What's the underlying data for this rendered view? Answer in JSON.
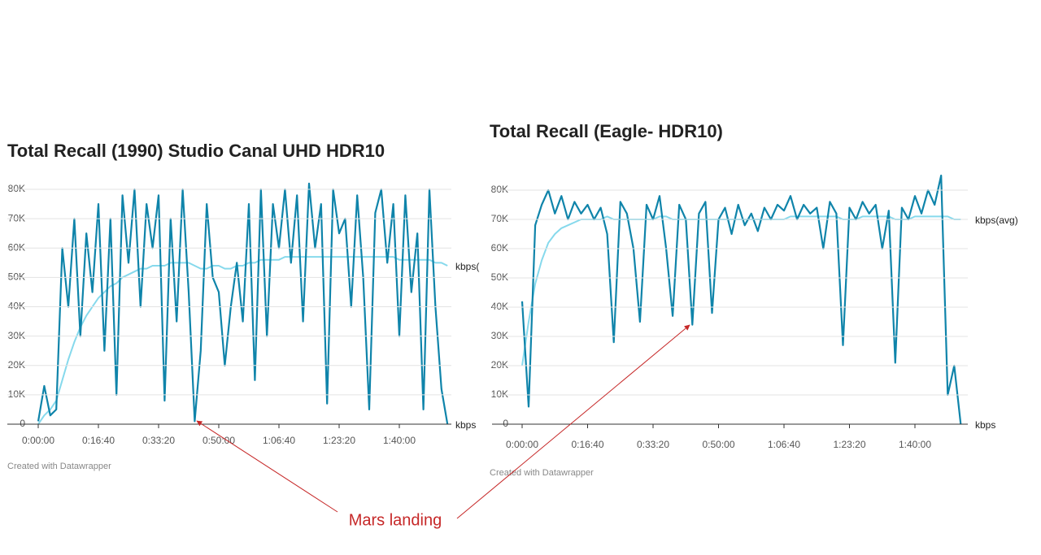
{
  "chart_data": [
    {
      "type": "line",
      "title": "Total Recall (1990) Studio Canal UHD HDR10",
      "credit": "Created with Datawrapper",
      "x": [
        0,
        100,
        200,
        300,
        400,
        500,
        600,
        700,
        800,
        900,
        1000,
        1100,
        1200,
        1300,
        1400,
        1500,
        1600,
        1700,
        1800,
        1900,
        2000,
        2100,
        2200,
        2300,
        2400,
        2500,
        2600,
        2700,
        2800,
        2900,
        3000,
        3100,
        3200,
        3300,
        3400,
        3500,
        3600,
        3700,
        3800,
        3900,
        4000,
        4100,
        4200,
        4300,
        4400,
        4500,
        4600,
        4700,
        4800,
        4900,
        5000,
        5100,
        5200,
        5300,
        5400,
        5500,
        5600,
        5700,
        5800,
        5900,
        6000,
        6100,
        6200,
        6300,
        6400,
        6500,
        6600,
        6700,
        6800
      ],
      "xlim": [
        0,
        6800
      ],
      "xticks": [
        {
          "value": 0,
          "label": "0:00:00"
        },
        {
          "value": 1000,
          "label": "0:16:40"
        },
        {
          "value": 2000,
          "label": "0:33:20"
        },
        {
          "value": 3000,
          "label": "0:50:00"
        },
        {
          "value": 4000,
          "label": "1:06:40"
        },
        {
          "value": 5000,
          "label": "1:23:20"
        },
        {
          "value": 6000,
          "label": "1:40:00"
        }
      ],
      "ylim": [
        0,
        85000
      ],
      "yticks": [
        0,
        {
          "value": 10000,
          "label": "10K"
        },
        {
          "value": 20000,
          "label": "20K"
        },
        {
          "value": 30000,
          "label": "30K"
        },
        {
          "value": 40000,
          "label": "40K"
        },
        {
          "value": 50000,
          "label": "50K"
        },
        {
          "value": 60000,
          "label": "60K"
        },
        {
          "value": 70000,
          "label": "70K"
        },
        {
          "value": 80000,
          "label": "80K"
        }
      ],
      "grid": true,
      "series": [
        {
          "name": "kbps",
          "color": "#0f84aa",
          "values": [
            1000,
            13000,
            3000,
            5000,
            60000,
            40000,
            70000,
            30000,
            65000,
            45000,
            75000,
            25000,
            70000,
            10000,
            78000,
            55000,
            80000,
            40000,
            75000,
            60000,
            78000,
            8000,
            70000,
            35000,
            80000,
            45000,
            1000,
            25000,
            75000,
            50000,
            45000,
            20000,
            40000,
            55000,
            35000,
            75000,
            15000,
            80000,
            30000,
            75000,
            60000,
            80000,
            55000,
            78000,
            35000,
            82000,
            60000,
            75000,
            7000,
            80000,
            65000,
            70000,
            40000,
            78000,
            50000,
            5000,
            72000,
            80000,
            55000,
            75000,
            30000,
            78000,
            45000,
            65000,
            5000,
            80000,
            40000,
            12000,
            0
          ]
        },
        {
          "name": "kbps(",
          "color": "#86d9ec",
          "values": [
            0,
            3000,
            5000,
            8000,
            15000,
            22000,
            28000,
            33000,
            37000,
            40000,
            43000,
            45000,
            47000,
            48000,
            50000,
            51000,
            52000,
            53000,
            53000,
            54000,
            54000,
            54000,
            55000,
            55000,
            55000,
            55000,
            54000,
            53000,
            53000,
            54000,
            54000,
            53000,
            53000,
            54000,
            54000,
            55000,
            55000,
            56000,
            56000,
            56000,
            56000,
            57000,
            57000,
            57000,
            57000,
            57000,
            57000,
            57000,
            57000,
            57000,
            57000,
            57000,
            57000,
            57000,
            57000,
            57000,
            57000,
            57000,
            57000,
            57000,
            56000,
            56000,
            56000,
            56000,
            56000,
            56000,
            55000,
            55000,
            54000
          ]
        }
      ]
    },
    {
      "type": "line",
      "title": "Total Recall (Eagle- HDR10)",
      "credit": "Created with Datawrapper",
      "x": [
        0,
        100,
        200,
        300,
        400,
        500,
        600,
        700,
        800,
        900,
        1000,
        1100,
        1200,
        1300,
        1400,
        1500,
        1600,
        1700,
        1800,
        1900,
        2000,
        2100,
        2200,
        2300,
        2400,
        2500,
        2600,
        2700,
        2800,
        2900,
        3000,
        3100,
        3200,
        3300,
        3400,
        3500,
        3600,
        3700,
        3800,
        3900,
        4000,
        4100,
        4200,
        4300,
        4400,
        4500,
        4600,
        4700,
        4800,
        4900,
        5000,
        5100,
        5200,
        5300,
        5400,
        5500,
        5600,
        5700,
        5800,
        5900,
        6000,
        6100,
        6200,
        6300,
        6400,
        6500,
        6600,
        6700
      ],
      "xlim": [
        0,
        6700
      ],
      "xticks": [
        {
          "value": 0,
          "label": "0:00:00"
        },
        {
          "value": 1000,
          "label": "0:16:40"
        },
        {
          "value": 2000,
          "label": "0:33:20"
        },
        {
          "value": 3000,
          "label": "0:50:00"
        },
        {
          "value": 4000,
          "label": "1:06:40"
        },
        {
          "value": 5000,
          "label": "1:23:20"
        },
        {
          "value": 6000,
          "label": "1:40:00"
        }
      ],
      "ylim": [
        0,
        85000
      ],
      "yticks": [
        0,
        {
          "value": 10000,
          "label": "10K"
        },
        {
          "value": 20000,
          "label": "20K"
        },
        {
          "value": 30000,
          "label": "30K"
        },
        {
          "value": 40000,
          "label": "40K"
        },
        {
          "value": 50000,
          "label": "50K"
        },
        {
          "value": 60000,
          "label": "60K"
        },
        {
          "value": 70000,
          "label": "70K"
        },
        {
          "value": 80000,
          "label": "80K"
        }
      ],
      "grid": true,
      "series": [
        {
          "name": "kbps",
          "color": "#0f84aa",
          "values": [
            42000,
            6000,
            68000,
            75000,
            80000,
            72000,
            78000,
            70000,
            76000,
            72000,
            75000,
            70000,
            74000,
            65000,
            28000,
            76000,
            72000,
            60000,
            35000,
            75000,
            70000,
            78000,
            60000,
            37000,
            75000,
            70000,
            34000,
            72000,
            76000,
            38000,
            70000,
            74000,
            65000,
            75000,
            68000,
            72000,
            66000,
            74000,
            70000,
            75000,
            73000,
            78000,
            70000,
            75000,
            72000,
            74000,
            60000,
            76000,
            72000,
            27000,
            74000,
            70000,
            76000,
            72000,
            75000,
            60000,
            73000,
            21000,
            74000,
            70000,
            78000,
            72000,
            80000,
            75000,
            85000,
            10000,
            20000,
            0
          ]
        },
        {
          "name": "kbps(avg)",
          "color": "#86d9ec",
          "values": [
            20000,
            35000,
            48000,
            56000,
            62000,
            65000,
            67000,
            68000,
            69000,
            70000,
            70000,
            70000,
            70000,
            71000,
            70000,
            70000,
            70000,
            70000,
            70000,
            70000,
            70000,
            71000,
            71000,
            70000,
            70000,
            70000,
            70000,
            70000,
            70000,
            70000,
            70000,
            70000,
            70000,
            70000,
            70000,
            70000,
            70000,
            70000,
            70000,
            70000,
            70000,
            71000,
            71000,
            71000,
            71000,
            71000,
            71000,
            71000,
            71000,
            70000,
            70000,
            70000,
            71000,
            71000,
            71000,
            71000,
            71000,
            70000,
            70000,
            70000,
            71000,
            71000,
            71000,
            71000,
            71000,
            71000,
            70000,
            70000
          ]
        }
      ]
    }
  ],
  "annotation": "Mars landing"
}
